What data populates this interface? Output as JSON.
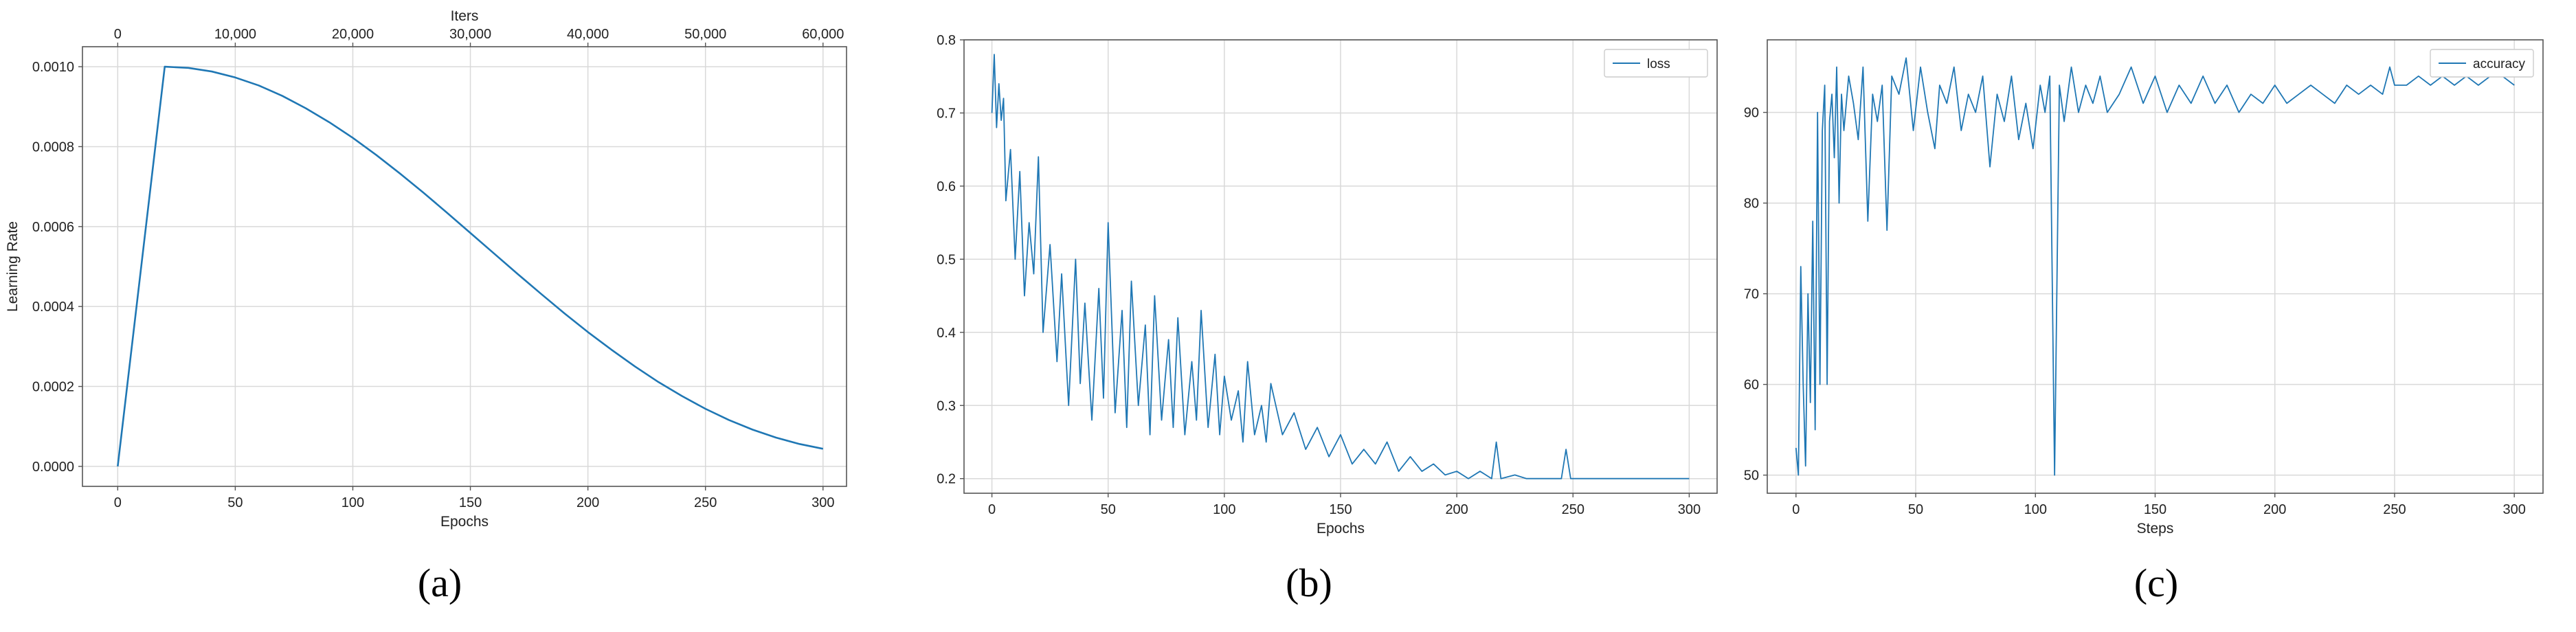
{
  "colors": {
    "series": "#1f77b4",
    "grid": "#d9d9d9",
    "axis": "#555555"
  },
  "chart_data": [
    {
      "panel_caption": "(a)",
      "type": "line",
      "xlabel": "Epochs",
      "ylabel": "Learning Rate",
      "top_xlabel": "Iters",
      "xlim": [
        -15,
        310
      ],
      "ylim": [
        -5e-05,
        0.00105
      ],
      "x_ticks": [
        0,
        50,
        100,
        150,
        200,
        250,
        300
      ],
      "x_tick_labels": [
        "0",
        "50",
        "100",
        "150",
        "200",
        "250",
        "300"
      ],
      "top_x_ticks": [
        0,
        50,
        100,
        150,
        200,
        250,
        300
      ],
      "top_x_tick_labels": [
        "0",
        "10,000",
        "20,000",
        "30,000",
        "40,000",
        "50,000",
        "60,000"
      ],
      "y_ticks": [
        0,
        0.0002,
        0.0004,
        0.0006,
        0.0008,
        0.001
      ],
      "y_tick_labels": [
        "0.0000",
        "0.0002",
        "0.0004",
        "0.0006",
        "0.0008",
        "0.0010"
      ],
      "grid": true,
      "legend": null,
      "series": [
        {
          "x": [
            0,
            10,
            20,
            30,
            40,
            50,
            60,
            70,
            80,
            90,
            100,
            110,
            120,
            130,
            140,
            150,
            160,
            170,
            180,
            190,
            200,
            210,
            220,
            230,
            240,
            250,
            260,
            270,
            280,
            290,
            300
          ],
          "values": [
            0.0,
            0.0005,
            0.001,
            0.000997,
            0.000988,
            0.000973,
            0.000953,
            0.000927,
            0.000896,
            0.000861,
            0.000822,
            0.000779,
            0.000733,
            0.000685,
            0.000635,
            0.000584,
            0.000533,
            0.000482,
            0.000432,
            0.000383,
            0.000336,
            0.000292,
            0.00025,
            0.000211,
            0.000176,
            0.000144,
            0.000116,
            9.2e-05,
            7.2e-05,
            5.6e-05,
            4.4e-05
          ]
        }
      ]
    },
    {
      "panel_caption": "(b)",
      "type": "line",
      "xlabel": "Epochs",
      "ylabel": "",
      "xlim": [
        -12,
        312
      ],
      "ylim": [
        0.18,
        0.8
      ],
      "x_ticks": [
        0,
        50,
        100,
        150,
        200,
        250,
        300
      ],
      "x_tick_labels": [
        "0",
        "50",
        "100",
        "150",
        "200",
        "250",
        "300"
      ],
      "y_ticks": [
        0.2,
        0.3,
        0.4,
        0.5,
        0.6,
        0.7,
        0.8
      ],
      "y_tick_labels": [
        "0.2",
        "0.3",
        "0.4",
        "0.5",
        "0.6",
        "0.7",
        "0.8"
      ],
      "grid": true,
      "legend": "top-right",
      "series": [
        {
          "name": "loss",
          "x": [
            0,
            1,
            2,
            3,
            4,
            5,
            6,
            8,
            10,
            12,
            14,
            16,
            18,
            20,
            22,
            25,
            28,
            30,
            33,
            36,
            38,
            40,
            43,
            46,
            48,
            50,
            53,
            56,
            58,
            60,
            63,
            66,
            68,
            70,
            73,
            76,
            78,
            80,
            83,
            86,
            88,
            90,
            93,
            96,
            98,
            100,
            103,
            106,
            108,
            110,
            113,
            116,
            118,
            120,
            125,
            130,
            135,
            140,
            145,
            150,
            155,
            160,
            165,
            170,
            175,
            180,
            185,
            190,
            195,
            200,
            205,
            210,
            215,
            217,
            219,
            225,
            230,
            240,
            245,
            247,
            249,
            255,
            260,
            270,
            280,
            290,
            300
          ],
          "values": [
            0.7,
            0.78,
            0.68,
            0.74,
            0.69,
            0.72,
            0.58,
            0.65,
            0.5,
            0.62,
            0.45,
            0.55,
            0.48,
            0.64,
            0.4,
            0.52,
            0.36,
            0.48,
            0.3,
            0.5,
            0.33,
            0.44,
            0.28,
            0.46,
            0.31,
            0.55,
            0.29,
            0.43,
            0.27,
            0.47,
            0.3,
            0.41,
            0.26,
            0.45,
            0.28,
            0.39,
            0.27,
            0.42,
            0.26,
            0.36,
            0.28,
            0.43,
            0.27,
            0.37,
            0.26,
            0.34,
            0.28,
            0.32,
            0.25,
            0.36,
            0.26,
            0.3,
            0.25,
            0.33,
            0.26,
            0.29,
            0.24,
            0.27,
            0.23,
            0.26,
            0.22,
            0.24,
            0.22,
            0.25,
            0.21,
            0.23,
            0.21,
            0.22,
            0.205,
            0.21,
            0.2,
            0.21,
            0.2,
            0.25,
            0.2,
            0.205,
            0.2,
            0.2,
            0.2,
            0.24,
            0.2,
            0.2,
            0.2,
            0.2,
            0.2,
            0.2,
            0.2
          ]
        }
      ]
    },
    {
      "panel_caption": "(c)",
      "type": "line",
      "xlabel": "Steps",
      "ylabel": "",
      "xlim": [
        -12,
        312
      ],
      "ylim": [
        48,
        98
      ],
      "x_ticks": [
        0,
        50,
        100,
        150,
        200,
        250,
        300
      ],
      "x_tick_labels": [
        "0",
        "50",
        "100",
        "150",
        "200",
        "250",
        "300"
      ],
      "y_ticks": [
        50,
        60,
        70,
        80,
        90
      ],
      "y_tick_labels": [
        "50",
        "60",
        "70",
        "80",
        "90"
      ],
      "grid": true,
      "legend": "top-right",
      "series": [
        {
          "name": "accuracy",
          "x": [
            0,
            1,
            2,
            3,
            4,
            5,
            6,
            7,
            8,
            9,
            10,
            11,
            12,
            13,
            14,
            15,
            16,
            17,
            18,
            19,
            20,
            22,
            24,
            26,
            28,
            30,
            32,
            34,
            36,
            38,
            40,
            43,
            46,
            49,
            52,
            55,
            58,
            60,
            63,
            66,
            69,
            72,
            75,
            78,
            81,
            84,
            87,
            90,
            93,
            96,
            99,
            102,
            104,
            106,
            108,
            110,
            112,
            115,
            118,
            121,
            124,
            127,
            130,
            135,
            140,
            145,
            150,
            155,
            160,
            165,
            170,
            175,
            180,
            185,
            190,
            195,
            200,
            205,
            210,
            215,
            220,
            225,
            230,
            235,
            240,
            245,
            248,
            250,
            255,
            260,
            265,
            270,
            275,
            280,
            285,
            290,
            295,
            300
          ],
          "values": [
            53,
            50,
            73,
            60,
            51,
            70,
            58,
            78,
            55,
            90,
            60,
            88,
            93,
            60,
            89,
            92,
            85,
            95,
            80,
            92,
            88,
            94,
            91,
            87,
            95,
            78,
            92,
            89,
            93,
            77,
            94,
            92,
            96,
            88,
            95,
            90,
            86,
            93,
            91,
            95,
            88,
            92,
            90,
            94,
            84,
            92,
            89,
            94,
            87,
            91,
            86,
            93,
            90,
            94,
            50,
            93,
            89,
            95,
            90,
            93,
            91,
            94,
            90,
            92,
            95,
            91,
            94,
            90,
            93,
            91,
            94,
            91,
            93,
            90,
            92,
            91,
            93,
            91,
            92,
            93,
            92,
            91,
            93,
            92,
            93,
            92,
            95,
            93,
            93,
            94,
            93,
            94,
            93,
            94,
            93,
            94,
            94,
            93
          ]
        }
      ]
    }
  ]
}
